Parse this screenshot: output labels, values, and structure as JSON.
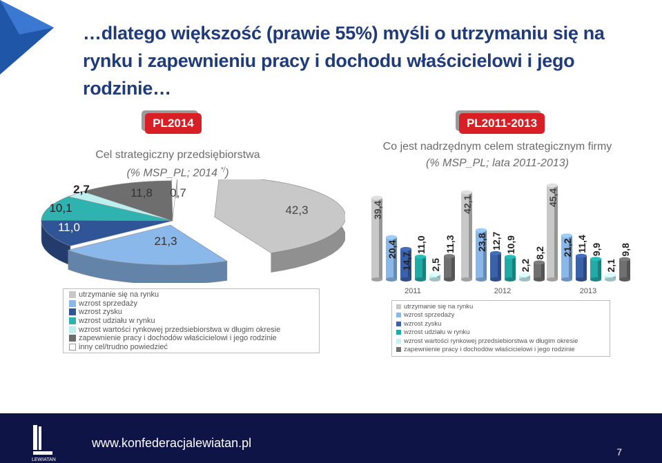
{
  "title": "…dlatego większość (prawie 55%) myśli o utrzymaniu się na rynku i zapewnieniu pracy i dochodu właścicielowi i jego rodzinie…",
  "left_panel": {
    "tag": "PL2014",
    "subtitle": "Cel strategiczny przedsiębiorstwa",
    "subtitle2": "(% MSP_PL; 2014",
    "subtitle2_sup": "*/",
    "subtitle2_end": ")"
  },
  "right_panel": {
    "tag": "PL2011-2013",
    "subtitle": "Co jest nadrzędnym celem strategicznym firmy",
    "subtitle2": "(% MSP_PL; lata 2011-2013)"
  },
  "chart_data": [
    {
      "type": "pie",
      "categories": [
        "utrzymanie się na rynku",
        "wzrost sprzedaży",
        "wzrost zysku",
        "wzrost udziału w rynku",
        "wzrost wartości rynkowej przedsiebiorstwa w długim okresie",
        "zapewnienie pracy i dochodów właścicielowi i jego rodzinie",
        "inny cel/trudno powiedzieć"
      ],
      "values": [
        42.3,
        21.3,
        11.0,
        10.1,
        2.7,
        11.8,
        0.7
      ],
      "labels": [
        "42,3",
        "21,3",
        "11,0",
        "10,1",
        "2,7",
        "11,8",
        "0,7"
      ],
      "colors": [
        "#c8c8c8",
        "#8ab8ea",
        "#2f5597",
        "#2fb3b0",
        "#bfeeee",
        "#6e6e6e",
        "#ffffff"
      ],
      "legend_placement": "bottom"
    },
    {
      "type": "bar",
      "categories": [
        "2011",
        "2012",
        "2013"
      ],
      "series": [
        {
          "name": "utrzymanie się na rynku",
          "values": [
            39.4,
            42.1,
            45.4
          ],
          "labels": [
            "39,4",
            "42,1",
            "45,4"
          ],
          "color": "#c8c8c8"
        },
        {
          "name": "wzrost sprzedaży",
          "values": [
            20.4,
            23.8,
            21.2
          ],
          "labels": [
            "20,4",
            "23,8",
            "21,2"
          ],
          "color": "#8ab8ea"
        },
        {
          "name": "wzrost zysku",
          "values": [
            14.7,
            12.7,
            11.4
          ],
          "labels": [
            "14,7",
            "12,7",
            "11,4"
          ],
          "color": "#3b62a8"
        },
        {
          "name": "wzrost udziału w rynku",
          "values": [
            11.0,
            10.9,
            9.9
          ],
          "labels": [
            "11,0",
            "10,9",
            "9,9"
          ],
          "color": "#22aaa5"
        },
        {
          "name": "wzrost wartości rynkowej przedsiebiorstwa w długim okresie",
          "values": [
            2.5,
            2.2,
            2.1
          ],
          "labels": [
            "2,5",
            "2,2",
            "2,1"
          ],
          "color": "#c6f0f0"
        },
        {
          "name": "zapewnienie pracy i dochodów właścicielowi i jego rodzinie",
          "values": [
            11.3,
            8.2,
            9.8
          ],
          "labels": [
            "11,3",
            "8,2",
            "9,8"
          ],
          "color": "#707070"
        }
      ],
      "legend_placement": "bottom"
    }
  ],
  "footer": {
    "url": "www.konfederacjalewiatan.pl",
    "logo_text": "LEWIATAN",
    "page_number": "7"
  }
}
